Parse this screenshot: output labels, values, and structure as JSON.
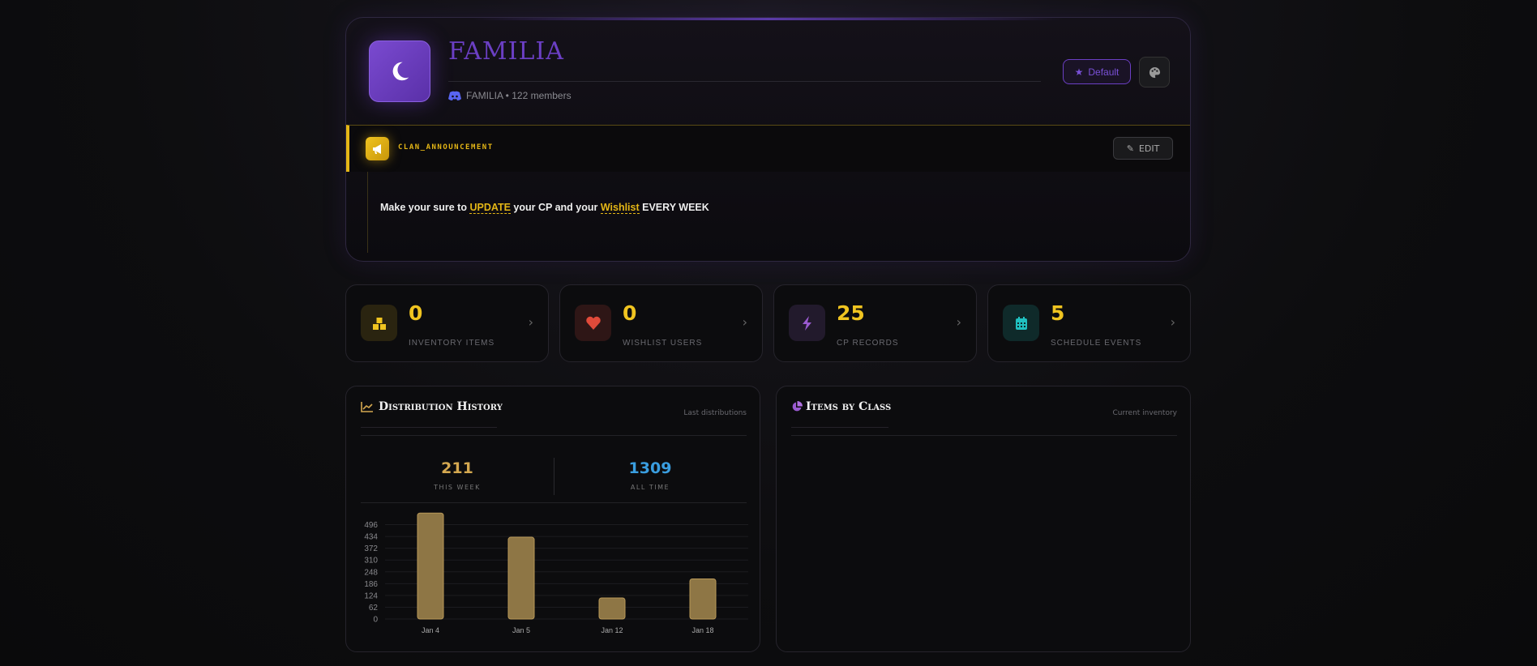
{
  "clan": {
    "name": "FAMILIA",
    "discord_line": "FAMILIA • 122 members",
    "default_label": "Default"
  },
  "announcement": {
    "label": "CLAN_ANNOUNCEMENT",
    "edit_label": "EDIT",
    "parts": [
      "Make your sure to ",
      "UPDATE",
      " your CP and your ",
      "Wishlist",
      " EVERY WEEK"
    ]
  },
  "stats": [
    {
      "value": "0",
      "label": "INVENTORY ITEMS",
      "icon": "boxes-icon",
      "color": "#f0c420"
    },
    {
      "value": "0",
      "label": "WISHLIST USERS",
      "icon": "heart-icon",
      "color": "#e04a3a"
    },
    {
      "value": "25",
      "label": "CP RECORDS",
      "icon": "bolt-icon",
      "color": "#9a5ad0"
    },
    {
      "value": "5",
      "label": "SCHEDULE EVENTS",
      "icon": "calendar-icon",
      "color": "#20c0c0"
    }
  ],
  "distribution": {
    "title": "Distribution History",
    "note": "Last distributions",
    "this_week": "211",
    "this_week_label": "THIS WEEK",
    "all_time": "1309",
    "all_time_label": "ALL TIME"
  },
  "items_by_class": {
    "title": "Items by Class",
    "note": "Current inventory"
  },
  "chart_data": {
    "type": "bar",
    "categories": [
      "Jan 4",
      "Jan 5",
      "Jan 12",
      "Jan 18"
    ],
    "values": [
      557,
      430,
      111,
      211
    ],
    "yticks": [
      0,
      62,
      124,
      186,
      248,
      310,
      372,
      434,
      496
    ],
    "ylim": [
      0,
      558
    ],
    "title": "Distribution History",
    "xlabel": "",
    "ylabel": "",
    "color": "#8e7645"
  }
}
